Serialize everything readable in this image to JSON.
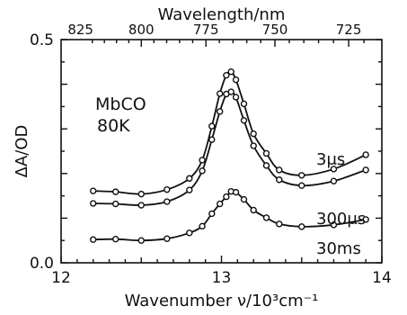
{
  "chart_data": {
    "type": "line",
    "title": "",
    "xlabel": "Wavenumber ν/10³cm⁻¹",
    "ylabel": "ΔA/OD",
    "xlim": [
      12,
      14
    ],
    "ylim": [
      0,
      0.5
    ],
    "x_ticks": [
      12,
      13,
      14
    ],
    "x_tick_labels": [
      "12",
      "13",
      "14"
    ],
    "y_ticks": [
      0,
      0.5
    ],
    "y_tick_labels": [
      "0.0",
      "0.5"
    ],
    "top_axis": {
      "label": "Wavelength/nm",
      "ticks_nm": [
        825,
        800,
        775,
        750,
        725
      ],
      "tick_labels": [
        "825",
        "800",
        "775",
        "750",
        "725"
      ]
    },
    "annotation": [
      "MbCO",
      "80K"
    ],
    "series": [
      {
        "label": "3μs",
        "x": [
          12.2,
          12.34,
          12.5,
          12.66,
          12.8,
          12.88,
          12.94,
          12.99,
          13.03,
          13.06,
          13.09,
          13.14,
          13.2,
          13.28,
          13.36,
          13.5,
          13.7,
          13.9
        ],
        "y": [
          0.161,
          0.159,
          0.154,
          0.164,
          0.189,
          0.23,
          0.306,
          0.379,
          0.42,
          0.428,
          0.41,
          0.356,
          0.289,
          0.245,
          0.208,
          0.196,
          0.21,
          0.242
        ]
      },
      {
        "label": "300μs",
        "x": [
          12.2,
          12.34,
          12.5,
          12.66,
          12.8,
          12.88,
          12.94,
          12.99,
          13.03,
          13.06,
          13.09,
          13.14,
          13.2,
          13.28,
          13.36,
          13.5,
          13.7,
          13.9
        ],
        "y": [
          0.133,
          0.132,
          0.129,
          0.137,
          0.163,
          0.206,
          0.276,
          0.339,
          0.378,
          0.383,
          0.371,
          0.319,
          0.262,
          0.218,
          0.186,
          0.173,
          0.183,
          0.208
        ]
      },
      {
        "label": "30ms",
        "x": [
          12.2,
          12.34,
          12.5,
          12.66,
          12.8,
          12.88,
          12.94,
          12.99,
          13.03,
          13.06,
          13.09,
          13.14,
          13.2,
          13.28,
          13.36,
          13.5,
          13.7,
          13.9
        ],
        "y": [
          0.052,
          0.053,
          0.05,
          0.054,
          0.067,
          0.082,
          0.11,
          0.132,
          0.148,
          0.16,
          0.158,
          0.142,
          0.118,
          0.101,
          0.087,
          0.081,
          0.085,
          0.097
        ]
      }
    ]
  }
}
